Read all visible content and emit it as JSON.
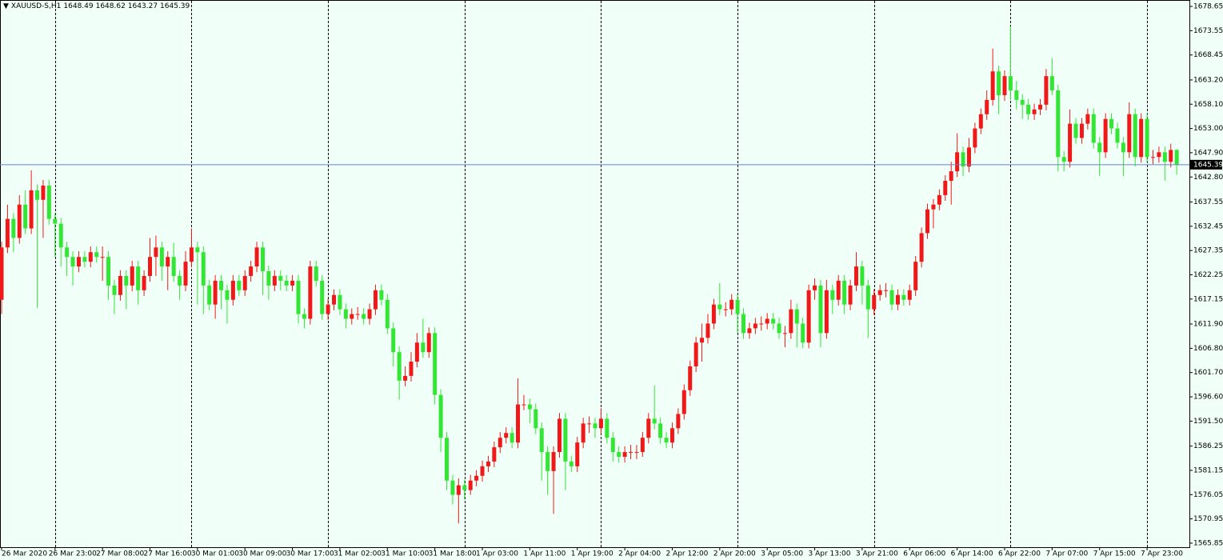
{
  "chart_data": {
    "type": "candlestick",
    "symbol": "XAUUSD-S,H1",
    "categories": [
      "26 Mar 2020",
      null,
      null,
      null,
      null,
      null,
      null,
      null,
      null,
      "26 Mar 23:00",
      null,
      null,
      null,
      null,
      null,
      null,
      null,
      "27 Mar 08:00",
      null,
      null,
      null,
      null,
      null,
      null,
      null,
      "27 Mar 16:00",
      null,
      null,
      null,
      null,
      null,
      null,
      null,
      "30 Mar 01:00",
      null,
      null,
      null,
      null,
      null,
      null,
      null,
      "30 Mar 09:00",
      null,
      null,
      null,
      null,
      null,
      null,
      null,
      "30 Mar 17:00",
      null,
      null,
      null,
      null,
      null,
      null,
      null,
      "31 Mar 02:00",
      null,
      null,
      null,
      null,
      null,
      null,
      null,
      "31 Mar 10:00",
      null,
      null,
      null,
      null,
      null,
      null,
      null,
      "31 Mar 18:00",
      null,
      null,
      null,
      null,
      null,
      null,
      null,
      "1 Apr 03:00",
      null,
      null,
      null,
      null,
      null,
      null,
      null,
      "1 Apr 11:00",
      null,
      null,
      null,
      null,
      null,
      null,
      null,
      "1 Apr 19:00",
      null,
      null,
      null,
      null,
      null,
      null,
      null,
      "2 Apr 04:00",
      null,
      null,
      null,
      null,
      null,
      null,
      null,
      "2 Apr 12:00",
      null,
      null,
      null,
      null,
      null,
      null,
      null,
      "2 Apr 20:00",
      null,
      null,
      null,
      null,
      null,
      null,
      null,
      "3 Apr 05:00",
      null,
      null,
      null,
      null,
      null,
      null,
      null,
      "3 Apr 13:00",
      null,
      null,
      null,
      null,
      null,
      null,
      null,
      "3 Apr 21:00",
      null,
      null,
      null,
      null,
      null,
      null,
      null,
      "6 Apr 06:00",
      null,
      null,
      null,
      null,
      null,
      null,
      null,
      "6 Apr 14:00",
      null,
      null,
      null,
      null,
      null,
      null,
      null,
      "6 Apr 22:00",
      null,
      null,
      null,
      null,
      null,
      null,
      null,
      "7 Apr 07:00",
      null,
      null,
      null,
      null,
      null,
      null,
      null,
      "7 Apr 15:00",
      null,
      null,
      null,
      null,
      null,
      null,
      null,
      "7 Apr 23:00",
      null,
      null,
      null,
      null,
      null
    ],
    "open": [
      1617,
      1628,
      1634,
      1630,
      1637,
      1632,
      1640,
      1638,
      1641,
      1634,
      1633,
      1628,
      1626,
      1624,
      1626,
      1625,
      1627,
      1626,
      1626,
      1620,
      1618,
      1622,
      1620,
      1624,
      1619,
      1622,
      1626,
      1628,
      1624,
      1626,
      1622,
      1620,
      1625,
      1628,
      1627,
      1620,
      1616,
      1621,
      1619,
      1617,
      1621,
      1619,
      1622,
      1624,
      1628,
      1623,
      1620,
      1622,
      1621,
      1620,
      1621,
      1614,
      1613,
      1624,
      1621,
      1614,
      1616,
      1618,
      1615,
      1613,
      1614,
      1614,
      1613,
      1615,
      1619,
      1617,
      1611,
      1606,
      1600,
      1601,
      1604,
      1608,
      1606,
      1610,
      1597,
      1588,
      1579,
      1576,
      1578,
      1577,
      1579,
      1580,
      1582,
      1583,
      1586,
      1588,
      1589,
      1587,
      1595,
      1595,
      1594,
      1590,
      1585,
      1581,
      1585,
      1592,
      1583,
      1582,
      1587,
      1591,
      1591,
      1590,
      1592,
      1588,
      1585,
      1584,
      1585,
      1585,
      1585,
      1588,
      1592,
      1591,
      1588,
      1587,
      1590,
      1593,
      1598,
      1603,
      1608,
      1609,
      1612,
      1616,
      1615,
      1615,
      1617,
      1614,
      1610,
      1611,
      1612,
      1612,
      1613,
      1612,
      1610,
      1610,
      1615,
      1612,
      1608,
      1619,
      1620,
      1610,
      1619,
      1617,
      1621,
      1616,
      1620,
      1624,
      1620,
      1615,
      1618,
      1619,
      1619,
      1616,
      1618,
      1617,
      1619,
      1625,
      1631,
      1636,
      1637,
      1639,
      1642,
      1644,
      1648,
      1645,
      1649,
      1653,
      1656,
      1659,
      1665,
      1660,
      1664,
      1661,
      1659,
      1658,
      1656,
      1657,
      1658,
      1664,
      1661,
      1647,
      1646,
      1654,
      1651,
      1654,
      1656,
      1650,
      1648,
      1655,
      1653,
      1650,
      1648,
      1656,
      1647,
      1655,
      1647,
      1647,
      1648,
      1646,
      1648.49
    ],
    "high": [
      1629.2,
      1637,
      1635.2,
      1639,
      1640,
      1644.2,
      1641.2,
      1642.2,
      1642.2,
      1635.2,
      1634.2,
      1629.2,
      1627.2,
      1627.2,
      1627.2,
      1628.2,
      1628.2,
      1628.2,
      1627.2,
      1621.2,
      1623.2,
      1623.2,
      1625.2,
      1625.2,
      1623.2,
      1630,
      1630.5,
      1629.2,
      1627.2,
      1629,
      1623.2,
      1627.2,
      1632,
      1629.2,
      1628.2,
      1621.2,
      1622.2,
      1622.2,
      1620.2,
      1622.2,
      1622.2,
      1623.2,
      1625.2,
      1629.2,
      1629.2,
      1624.2,
      1623.2,
      1623.2,
      1622.2,
      1622.2,
      1622.2,
      1615.2,
      1625.2,
      1625.2,
      1622.2,
      1617.2,
      1619.2,
      1619.2,
      1616.2,
      1615.2,
      1615.5,
      1615.2,
      1616.2,
      1620.2,
      1620.2,
      1618.2,
      1612.2,
      1607.2,
      1603,
      1606,
      1610,
      1613,
      1611.2,
      1611.2,
      1598.2,
      1589.2,
      1580.2,
      1579.5,
      1579.2,
      1580.2,
      1581.2,
      1583.2,
      1584.2,
      1587.2,
      1589.2,
      1590.2,
      1590.2,
      1600.5,
      1597,
      1596.2,
      1595.2,
      1591.2,
      1586.2,
      1586.2,
      1593.2,
      1593.2,
      1584.2,
      1588.2,
      1592.2,
      1592.5,
      1592.2,
      1594.2,
      1593.2,
      1589.2,
      1586.2,
      1586.2,
      1586.5,
      1586.5,
      1589.2,
      1593.2,
      1599,
      1592.2,
      1589.2,
      1591.2,
      1594.2,
      1599.2,
      1604.2,
      1609.2,
      1612,
      1614,
      1617.2,
      1620.5,
      1616.5,
      1618.2,
      1618.2,
      1615.2,
      1612.2,
      1613.2,
      1613.5,
      1614.2,
      1614.2,
      1613.2,
      1611.5,
      1617,
      1616.2,
      1613.2,
      1620.2,
      1621.5,
      1621.2,
      1621.2,
      1620.2,
      1622.2,
      1622.2,
      1621.2,
      1627,
      1625.2,
      1621.2,
      1619.2,
      1620.2,
      1620.5,
      1620.2,
      1619.2,
      1619.2,
      1620.2,
      1626.2,
      1632.2,
      1637.2,
      1638.2,
      1640.2,
      1643.2,
      1646,
      1652,
      1649.2,
      1651,
      1654.2,
      1657.2,
      1661,
      1669.8,
      1666.2,
      1665.2,
      1674.5,
      1663,
      1660.2,
      1659.2,
      1658.2,
      1659.2,
      1665.5,
      1667.8,
      1662.2,
      1648.2,
      1657,
      1655.2,
      1655.2,
      1657.2,
      1657.2,
      1651.2,
      1656.2,
      1656.2,
      1654.2,
      1651.2,
      1658.5,
      1657.2,
      1656.2,
      1656.2,
      1648.5,
      1649.2,
      1649.2,
      1649.8,
      1648.62
    ],
    "low": [
      1614,
      1626.8,
      1627,
      1628.8,
      1630.8,
      1630.8,
      1615.3,
      1630,
      1632.8,
      1626,
      1624,
      1622,
      1620,
      1622.8,
      1623.8,
      1623.8,
      1624.8,
      1621,
      1617,
      1614,
      1616.8,
      1615,
      1618.8,
      1616,
      1617.8,
      1620.8,
      1622,
      1621,
      1619,
      1620.8,
      1617,
      1618.8,
      1623.8,
      1616,
      1614,
      1614.8,
      1613,
      1615,
      1612,
      1615.8,
      1617.8,
      1617.8,
      1620.8,
      1622.8,
      1618,
      1617,
      1618.8,
      1619,
      1618.8,
      1618.8,
      1612,
      1611,
      1611.8,
      1619.8,
      1612.8,
      1612.8,
      1614.8,
      1613.8,
      1611,
      1611.8,
      1612.8,
      1611.8,
      1611.8,
      1613.8,
      1615.8,
      1609.8,
      1603,
      1596,
      1598.8,
      1599.8,
      1602.8,
      1604.8,
      1604.8,
      1595,
      1585,
      1577,
      1574,
      1570,
      1575,
      1576,
      1577.8,
      1578.8,
      1580.8,
      1581.8,
      1584.8,
      1586.8,
      1585.8,
      1585.8,
      1593.8,
      1591,
      1588.8,
      1579,
      1576,
      1572,
      1583.8,
      1577,
      1580.8,
      1580.8,
      1585.8,
      1589,
      1588,
      1588.8,
      1586.8,
      1583,
      1582.8,
      1582.8,
      1583.5,
      1583.5,
      1584,
      1586.8,
      1589.8,
      1586.8,
      1585.8,
      1585.8,
      1588.8,
      1591.8,
      1596.8,
      1601.8,
      1604,
      1607.8,
      1610.8,
      1613.8,
      1613.5,
      1613.8,
      1610,
      1608.8,
      1608.8,
      1609.8,
      1610.5,
      1610.8,
      1610.8,
      1608.8,
      1607,
      1608.8,
      1607,
      1606.8,
      1606.8,
      1617,
      1607,
      1608.8,
      1614,
      1615.8,
      1614,
      1614.8,
      1618.8,
      1616,
      1609,
      1613.8,
      1616.8,
      1617.5,
      1614.8,
      1614.8,
      1615.8,
      1615.8,
      1617.8,
      1623.8,
      1629.8,
      1632,
      1635.8,
      1637.8,
      1637,
      1642.8,
      1643,
      1643.8,
      1647.8,
      1651.8,
      1654.8,
      1657.8,
      1656,
      1658.8,
      1659,
      1657,
      1655,
      1654.8,
      1654.8,
      1655.8,
      1656.8,
      1660,
      1644,
      1644,
      1644.8,
      1649.8,
      1649.8,
      1652.8,
      1648.8,
      1643,
      1646.8,
      1651.8,
      1648.8,
      1643,
      1646.8,
      1645,
      1645.8,
      1645.8,
      1645.5,
      1645.8,
      1642,
      1644.8,
      1643.27
    ],
    "close": [
      1628,
      1634,
      1630,
      1637,
      1632,
      1640,
      1638,
      1641,
      1634,
      1633,
      1628,
      1626,
      1624,
      1626,
      1625,
      1627,
      1626,
      1626,
      1620,
      1618,
      1622,
      1620,
      1624,
      1619,
      1622,
      1626,
      1628,
      1624,
      1626,
      1622,
      1620,
      1625,
      1628,
      1627,
      1620,
      1616,
      1621,
      1619,
      1617,
      1621,
      1619,
      1622,
      1624,
      1628,
      1623,
      1620,
      1622,
      1621,
      1620,
      1621,
      1614,
      1613,
      1624,
      1621,
      1614,
      1616,
      1618,
      1615,
      1613,
      1614,
      1614,
      1613,
      1615,
      1619,
      1617,
      1611,
      1606,
      1600,
      1601,
      1604,
      1608,
      1606,
      1610,
      1597,
      1588,
      1579,
      1576,
      1578,
      1577,
      1579,
      1580,
      1582,
      1583,
      1586,
      1588,
      1589,
      1587,
      1595,
      1595,
      1594,
      1590,
      1585,
      1581,
      1585,
      1592,
      1583,
      1582,
      1587,
      1591,
      1591,
      1590,
      1592,
      1588,
      1585,
      1584,
      1585,
      1585,
      1585,
      1588,
      1592,
      1591,
      1588,
      1587,
      1590,
      1593,
      1598,
      1603,
      1608,
      1609,
      1612,
      1616,
      1615,
      1615,
      1617,
      1614,
      1610,
      1611,
      1612,
      1612,
      1613,
      1612,
      1610,
      1610,
      1615,
      1612,
      1608,
      1619,
      1620,
      1610,
      1619,
      1617,
      1621,
      1616,
      1620,
      1624,
      1620,
      1615,
      1618,
      1619,
      1619,
      1616,
      1618,
      1617,
      1619,
      1625,
      1631,
      1636,
      1637,
      1639,
      1642,
      1644,
      1648,
      1645,
      1649,
      1653,
      1656,
      1659,
      1665,
      1660,
      1664,
      1661,
      1659,
      1658,
      1656,
      1657,
      1658,
      1664,
      1661,
      1647,
      1646,
      1654,
      1651,
      1654,
      1656,
      1650,
      1648,
      1655,
      1653,
      1650,
      1648,
      1656,
      1647,
      1655,
      1647,
      1647,
      1648,
      1646,
      1648.49,
      1645.39
    ],
    "up_color": "#f01818",
    "down_color": "#33e633",
    "price_line_color": "#6c7fd2",
    "ylim": [
      1565.0,
      1680.0
    ],
    "yticks": [
      1678.65,
      1673.55,
      1668.45,
      {
        "value": 1663.2,
        "label": "1663.20"
      },
      {
        "value": 1658.1,
        "label": "1658.10"
      },
      {
        "value": 1653,
        "label": "1653.00"
      },
      {
        "value": 1647.9,
        "label": "1647.90"
      },
      {
        "value": 1642.8,
        "label": "1642.80"
      },
      1637.55,
      1632.45,
      1627.35,
      1622.25,
      1617.15,
      {
        "value": 1611.9,
        "label": "1611.90"
      },
      {
        "value": 1606.8,
        "label": "1606.80"
      },
      {
        "value": 1601.7,
        "label": "1601.70"
      },
      {
        "value": 1596.6,
        "label": "1596.60"
      },
      {
        "value": 1591.5,
        "label": "1591.50"
      },
      1586.25,
      1581.15,
      1576.05,
      1570.95,
      1565.85
    ],
    "grid": true
  }
}
